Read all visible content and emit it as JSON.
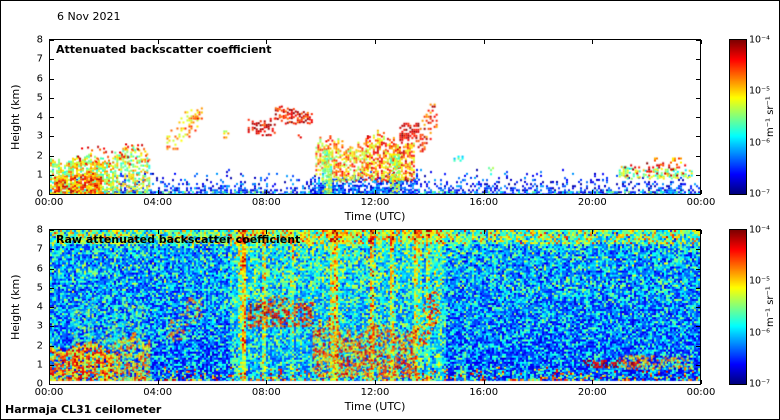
{
  "figure": {
    "date_label": "6 Nov 2021",
    "footer_label": "Harmaja CL31 ceilometer",
    "background": "#ffffff",
    "colormap_name": "jet"
  },
  "chart_data": [
    {
      "type": "heatmap",
      "title": "Attenuated backscatter coefficient",
      "xlabel": "Time (UTC)",
      "ylabel": "Height (km)",
      "x_ticks": [
        "00:00",
        "04:00",
        "08:00",
        "12:00",
        "16:00",
        "20:00",
        "00:00"
      ],
      "y_ticks": [
        0,
        1,
        2,
        3,
        4,
        5,
        6,
        7,
        8
      ],
      "xlim_hours": [
        0,
        24
      ],
      "ylim_km": [
        0,
        8
      ],
      "colormap": "jet",
      "scale": "log10",
      "value_min": "1e-7",
      "value_max": "1e-4",
      "colorbar_ticks": [
        "10⁻⁴",
        "10⁻⁵",
        "10⁻⁶",
        "10⁻⁷"
      ],
      "colorbar_unit": "m⁻¹ sr⁻¹",
      "seed": 7,
      "features": [
        {
          "type": "exp_surface",
          "scale": 0.33,
          "base": 0.92,
          "hmax": 1.3,
          "val": [
            0.02,
            0.3
          ]
        },
        {
          "type": "speckle_box",
          "t": [
            0,
            24
          ],
          "h": [
            0,
            0.15
          ],
          "density": 0.25,
          "val": [
            0.3,
            0.55
          ]
        },
        {
          "type": "speckle_box",
          "t": [
            0,
            24
          ],
          "h": [
            0.4,
            1.1
          ],
          "density": 0.05,
          "val": [
            0.03,
            0.3
          ]
        },
        {
          "type": "speckle_box",
          "t": [
            9.6,
            13.6
          ],
          "h": [
            0,
            0.8
          ],
          "density": 0.5,
          "val": [
            0.05,
            0.35
          ]
        },
        {
          "type": "speckle_box",
          "t": [
            0.0,
            2.3
          ],
          "h": [
            0,
            2.0
          ],
          "density": 0.7,
          "val": [
            0.4,
            0.8
          ],
          "rag": 0.5
        },
        {
          "type": "speckle_box",
          "t": [
            0.15,
            1.9
          ],
          "h": [
            0.05,
            1.1
          ],
          "density": 0.75,
          "val": [
            0.6,
            0.95
          ],
          "rag": 0.3
        },
        {
          "type": "speckle_box",
          "t": [
            2.3,
            3.7
          ],
          "h": [
            0,
            2.45
          ],
          "density": 0.5,
          "val": [
            0.4,
            0.75
          ],
          "rag": 0.6
        },
        {
          "type": "speckle_box",
          "t": [
            1.0,
            3.6
          ],
          "h": [
            1.6,
            2.6
          ],
          "density": 0.12,
          "val": [
            0.75,
            0.95
          ],
          "rag": 0.3
        },
        {
          "type": "speckle_box",
          "t": [
            4.3,
            5.5
          ],
          "h": [
            2.4,
            4.4
          ],
          "density": 0.22,
          "val": [
            0.55,
            0.85
          ],
          "diag": 1
        },
        {
          "type": "speckle_box",
          "t": [
            5.2,
            5.6
          ],
          "h": [
            3.9,
            4.5
          ],
          "density": 0.35,
          "val": [
            0.6,
            0.9
          ]
        },
        {
          "type": "speckle_box",
          "t": [
            6.4,
            6.8
          ],
          "h": [
            2.9,
            3.3
          ],
          "density": 0.2,
          "val": [
            0.5,
            0.8
          ]
        },
        {
          "type": "speckle_box",
          "t": [
            7.3,
            8.3
          ],
          "h": [
            3.1,
            4.0
          ],
          "density": 0.45,
          "val": [
            0.78,
            1.0
          ],
          "rag": 0.3
        },
        {
          "type": "speckle_box",
          "t": [
            8.3,
            9.7
          ],
          "h": [
            3.7,
            4.5
          ],
          "density": 0.55,
          "val": [
            0.75,
            1.0
          ],
          "rag": 0.25
        },
        {
          "type": "speckle_box",
          "t": [
            9.0,
            9.3
          ],
          "h": [
            2.9,
            3.2
          ],
          "density": 0.3,
          "val": [
            0.8,
            1.0
          ]
        },
        {
          "type": "speckle_box",
          "t": [
            9.8,
            11.7
          ],
          "h": [
            0.7,
            2.9
          ],
          "density": 0.55,
          "val": [
            0.5,
            0.88
          ],
          "rag": 0.6
        },
        {
          "type": "speckle_box",
          "t": [
            10.05,
            10.35
          ],
          "h": [
            0,
            2.3
          ],
          "density": 0.65,
          "val": [
            0.4,
            0.65
          ]
        },
        {
          "type": "speckle_box",
          "t": [
            11.7,
            13.4
          ],
          "h": [
            0.7,
            3.1
          ],
          "density": 0.6,
          "val": [
            0.55,
            0.95
          ],
          "rag": 0.6
        },
        {
          "type": "speckle_box",
          "t": [
            12.55,
            12.85
          ],
          "h": [
            0,
            2.1
          ],
          "density": 0.6,
          "val": [
            0.42,
            0.68
          ]
        },
        {
          "type": "speckle_box",
          "t": [
            12.9,
            13.6
          ],
          "h": [
            2.8,
            3.7
          ],
          "density": 0.5,
          "val": [
            0.8,
            1.0
          ]
        },
        {
          "type": "speckle_box",
          "t": [
            13.5,
            14.3
          ],
          "h": [
            2.2,
            4.7
          ],
          "density": 0.28,
          "val": [
            0.7,
            0.97
          ],
          "diag": 1
        },
        {
          "type": "speckle_box",
          "t": [
            14.9,
            15.2
          ],
          "h": [
            1.7,
            2.1
          ],
          "density": 0.35,
          "val": [
            0.3,
            0.5
          ]
        },
        {
          "type": "speckle_box",
          "t": [
            16.1,
            16.4
          ],
          "h": [
            1.0,
            1.4
          ],
          "density": 0.2,
          "val": [
            0.3,
            0.55
          ]
        },
        {
          "type": "speckle_box",
          "t": [
            21.0,
            23.7
          ],
          "h": [
            0.85,
            1.4
          ],
          "density": 0.5,
          "val": [
            0.35,
            0.7
          ],
          "rag": 0.2
        },
        {
          "type": "speckle_box",
          "t": [
            21.2,
            23.5
          ],
          "h": [
            0.95,
            1.65
          ],
          "density": 0.12,
          "val": [
            0.82,
            1.0
          ]
        },
        {
          "type": "speckle_box",
          "t": [
            22.3,
            23.4
          ],
          "h": [
            1.5,
            1.9
          ],
          "density": 0.18,
          "val": [
            0.6,
            0.85
          ]
        }
      ]
    },
    {
      "type": "heatmap",
      "title": "Raw attenuated backscatter coefficient",
      "xlabel": "Time (UTC)",
      "ylabel": "Height (km)",
      "x_ticks": [
        "00:00",
        "04:00",
        "08:00",
        "12:00",
        "16:00",
        "20:00",
        "00:00"
      ],
      "y_ticks": [
        0,
        1,
        2,
        3,
        4,
        5,
        6,
        7,
        8
      ],
      "xlim_hours": [
        0,
        24
      ],
      "ylim_km": [
        0,
        8
      ],
      "colormap": "jet",
      "scale": "log10",
      "value_min": "1e-7",
      "value_max": "1e-4",
      "colorbar_ticks": [
        "10⁻⁴",
        "10⁻⁵",
        "10⁻⁶",
        "10⁻⁷"
      ],
      "colorbar_unit": "m⁻¹ sr⁻¹",
      "seed": 99,
      "features": [
        {
          "type": "noise_field",
          "base": 0.08,
          "rand": 0.38,
          "rand_pow": 1.6,
          "height_gain": 0.22,
          "top_km": 7.3,
          "top_boost": 0.3,
          "streak_t": [
            6.6,
            14.6
          ],
          "streak_gain": 0.45,
          "day_boost": 0.08
        },
        {
          "type": "speckle_box",
          "t": [
            0.8,
            3.5
          ],
          "h": [
            2.0,
            4.3
          ],
          "density": 0.4,
          "val": [
            0.3,
            0.6
          ],
          "rag": 0.8
        },
        {
          "type": "speckle_box",
          "t": [
            0.0,
            2.3
          ],
          "h": [
            0,
            2.1
          ],
          "density": 0.8,
          "val": [
            0.5,
            0.95
          ],
          "rag": 0.5
        },
        {
          "type": "speckle_box",
          "t": [
            2.3,
            3.7
          ],
          "h": [
            0,
            2.5
          ],
          "density": 0.6,
          "val": [
            0.45,
            0.85
          ],
          "rag": 0.6
        },
        {
          "type": "speckle_box",
          "t": [
            4.3,
            5.6
          ],
          "h": [
            2.2,
            4.5
          ],
          "density": 0.3,
          "val": [
            0.5,
            0.85
          ],
          "diag": 1
        },
        {
          "type": "speckle_box",
          "t": [
            7.3,
            9.7
          ],
          "h": [
            3.0,
            4.6
          ],
          "density": 0.45,
          "val": [
            0.7,
            1.0
          ],
          "rag": 0.4
        },
        {
          "type": "speckle_box",
          "t": [
            9.7,
            13.5
          ],
          "h": [
            0.4,
            3.2
          ],
          "density": 0.6,
          "val": [
            0.5,
            0.95
          ],
          "rag": 0.8
        },
        {
          "type": "speckle_box",
          "t": [
            13.4,
            14.4
          ],
          "h": [
            2.0,
            4.9
          ],
          "density": 0.3,
          "val": [
            0.6,
            0.95
          ],
          "diag": 1
        },
        {
          "type": "speckle_box",
          "t": [
            15.0,
            15.3
          ],
          "h": [
            0,
            2.0
          ],
          "density": 0.3,
          "val": [
            0.35,
            0.55
          ]
        },
        {
          "type": "speckle_box",
          "t": [
            19.6,
            21.7
          ],
          "h": [
            0.9,
            1.25
          ],
          "density": 0.4,
          "val": [
            0.85,
            1.0
          ]
        },
        {
          "type": "speckle_box",
          "t": [
            21.0,
            23.7
          ],
          "h": [
            0.8,
            1.5
          ],
          "density": 0.4,
          "val": [
            0.5,
            0.85
          ]
        },
        {
          "type": "exp_surface",
          "scale": 0.3,
          "base": 0.95,
          "hmax": 0.9,
          "val": [
            0.45,
            0.95
          ]
        },
        {
          "type": "bottom_gap",
          "px": 3
        }
      ]
    }
  ]
}
